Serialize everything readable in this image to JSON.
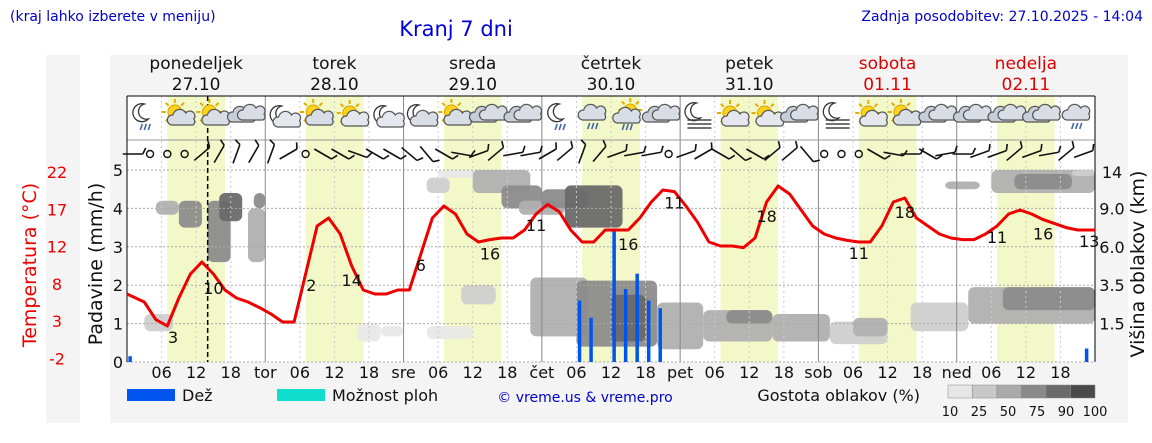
{
  "header": {
    "subtitle_left": "(kraj lahko izberete v meniju)",
    "title": "Kranj 7 dni",
    "updated": "Zadnja posodobitev: 27.10.2025 - 14:04"
  },
  "days": [
    {
      "name": "ponedeljek",
      "date": "27.10",
      "weekend": false
    },
    {
      "name": "torek",
      "date": "28.10",
      "weekend": false
    },
    {
      "name": "sreda",
      "date": "29.10",
      "weekend": false
    },
    {
      "name": "četrtek",
      "date": "30.10",
      "weekend": false
    },
    {
      "name": "petek",
      "date": "31.10",
      "weekend": false
    },
    {
      "name": "sobota",
      "date": "01.11",
      "weekend": true
    },
    {
      "name": "nedelja",
      "date": "02.11",
      "weekend": true
    }
  ],
  "colors": {
    "temperature": "#ee0000",
    "rain": "#0055ee",
    "shower": "#11ddcc",
    "daylight": "#f2f8c8",
    "title": "#0000dd",
    "weekend": "#dd0000"
  },
  "chart_data": {
    "type": "line",
    "x_unit": "hours since 27.10 00:00",
    "xlim": [
      0,
      168
    ],
    "x_ticks": [
      "06",
      "12",
      "18",
      "tor",
      "06",
      "12",
      "18",
      "sre",
      "06",
      "12",
      "18",
      "čet",
      "06",
      "12",
      "18",
      "pet",
      "06",
      "12",
      "18",
      "sob",
      "06",
      "12",
      "18",
      "ned",
      "06",
      "12",
      "18"
    ],
    "axes": {
      "temperature_label": "Temperatura (°C)",
      "temperature_ticks": [
        "22",
        "17",
        "12",
        "8",
        "3",
        "-2"
      ],
      "precip_label": "Padavine (mm/h)",
      "precip_ticks": [
        "5",
        "4",
        "3",
        "2",
        "1",
        "0"
      ],
      "cloud_label": "Višina oblakov (km)",
      "cloud_ticks": [
        "14",
        "9.0",
        "6.0",
        "3.5",
        "1.5"
      ]
    },
    "temperature": {
      "name": "Temperatura",
      "x": [
        0,
        3,
        5,
        7,
        9,
        11,
        13,
        15,
        17,
        19,
        21,
        23,
        25,
        27,
        29,
        31,
        33,
        35,
        37,
        39,
        41,
        43,
        45,
        47,
        49,
        51,
        53,
        55,
        57,
        59,
        61,
        63,
        65,
        67,
        69,
        71,
        73,
        75,
        77,
        79,
        81,
        83,
        85,
        87,
        89,
        91,
        93,
        95,
        97,
        99,
        101,
        103,
        105,
        107,
        109,
        111,
        113,
        115,
        117,
        119,
        121,
        123,
        125,
        127,
        129,
        131,
        133,
        135,
        137,
        139,
        141,
        143,
        145,
        147,
        149,
        151,
        153,
        155,
        157,
        159,
        161,
        163,
        165,
        168
      ],
      "y": [
        6.5,
        5.5,
        3.3,
        2.5,
        6,
        9,
        10.5,
        9,
        7,
        6,
        5.5,
        4.8,
        4,
        3,
        3,
        9,
        15,
        16,
        14,
        10,
        7,
        6.5,
        6.5,
        7,
        7,
        11.5,
        16,
        17.5,
        16.5,
        14,
        13,
        13.3,
        13.5,
        13.5,
        14.5,
        16.5,
        17.7,
        16.8,
        14.5,
        13,
        13,
        14.5,
        14.5,
        14.5,
        16,
        18,
        19.5,
        19.3,
        17.5,
        15.5,
        13,
        12.5,
        12.5,
        12.3,
        13.5,
        18,
        20,
        19,
        17,
        15,
        14,
        13.5,
        13.2,
        13,
        13,
        15,
        18,
        18.5,
        16,
        15,
        14,
        13.5,
        13.3,
        13.3,
        14,
        15,
        16.5,
        17,
        16.5,
        15.8,
        15.3,
        14.8,
        14.5,
        14.5
      ]
    },
    "temperature_labels": [
      {
        "x": 8,
        "value": "3"
      },
      {
        "x": 15,
        "value": "10"
      },
      {
        "x": 32,
        "value": "2"
      },
      {
        "x": 39,
        "value": "14"
      },
      {
        "x": 51,
        "value": "6"
      },
      {
        "x": 63,
        "value": "16"
      },
      {
        "x": 71,
        "value": "11"
      },
      {
        "x": 87,
        "value": "16"
      },
      {
        "x": 95,
        "value": "11"
      },
      {
        "x": 111,
        "value": "18"
      },
      {
        "x": 127,
        "value": "11"
      },
      {
        "x": 135,
        "value": "18"
      },
      {
        "x": 151,
        "value": "11"
      },
      {
        "x": 159,
        "value": "16"
      },
      {
        "x": 167,
        "value": "13"
      }
    ],
    "precipitation": {
      "name": "Dež",
      "x": [
        0.5,
        78.5,
        80.5,
        84.5,
        86.5,
        88.5,
        90.5,
        92.5,
        166.5
      ],
      "y": [
        0.15,
        1.6,
        1.15,
        3.4,
        1.9,
        2.3,
        1.6,
        1.4,
        0.35
      ]
    },
    "now_hour": 14,
    "daylight_hours": [
      7,
      17
    ],
    "clouds": [
      {
        "x0": 3,
        "x1": 8,
        "k0": 1.2,
        "k1": 2.0,
        "d": 25
      },
      {
        "x0": 5,
        "x1": 9,
        "k0": 8.5,
        "k1": 10,
        "d": 50
      },
      {
        "x0": 9,
        "x1": 13,
        "k0": 7.5,
        "k1": 10,
        "d": 75
      },
      {
        "x0": 14,
        "x1": 18,
        "k0": 5,
        "k1": 10,
        "d": 75
      },
      {
        "x0": 16,
        "x1": 20,
        "k0": 8,
        "k1": 11,
        "d": 90
      },
      {
        "x0": 21,
        "x1": 24,
        "k0": 5,
        "k1": 9,
        "d": 50
      },
      {
        "x0": 22,
        "x1": 24,
        "k0": 9,
        "k1": 11,
        "d": 75
      },
      {
        "x0": 40,
        "x1": 44,
        "k0": 0.8,
        "k1": 1.5,
        "d": 10
      },
      {
        "x0": 44,
        "x1": 48,
        "k0": 1.0,
        "k1": 1.4,
        "d": 10
      },
      {
        "x0": 52,
        "x1": 60,
        "k0": 0.9,
        "k1": 1.4,
        "d": 10
      },
      {
        "x0": 52,
        "x1": 56,
        "k0": 11,
        "k1": 13,
        "d": 25
      },
      {
        "x0": 54,
        "x1": 62,
        "k0": 13,
        "k1": 14.5,
        "d": 10
      },
      {
        "x0": 58,
        "x1": 64,
        "k0": 2.5,
        "k1": 3.5,
        "d": 25
      },
      {
        "x0": 60,
        "x1": 70,
        "k0": 11,
        "k1": 14,
        "d": 50
      },
      {
        "x0": 65,
        "x1": 72,
        "k0": 9,
        "k1": 12,
        "d": 75
      },
      {
        "x0": 68,
        "x1": 76,
        "k0": 8.5,
        "k1": 10,
        "d": 50
      },
      {
        "x0": 70,
        "x1": 80,
        "k0": 1.0,
        "k1": 4.0,
        "d": 50
      },
      {
        "x0": 72,
        "x1": 80,
        "k0": 9,
        "k1": 11.5,
        "d": 75
      },
      {
        "x0": 76,
        "x1": 86,
        "k0": 7.5,
        "k1": 12,
        "d": 90
      },
      {
        "x0": 78,
        "x1": 92,
        "k0": 0.6,
        "k1": 3.8,
        "d": 75
      },
      {
        "x0": 84,
        "x1": 90,
        "k0": 0.8,
        "k1": 3.0,
        "d": 90
      },
      {
        "x0": 92,
        "x1": 100,
        "k0": 0.5,
        "k1": 2.6,
        "d": 50
      },
      {
        "x0": 100,
        "x1": 112,
        "k0": 0.8,
        "k1": 2.2,
        "d": 50
      },
      {
        "x0": 104,
        "x1": 112,
        "k0": 1.5,
        "k1": 2.2,
        "d": 75
      },
      {
        "x0": 112,
        "x1": 122,
        "k0": 0.8,
        "k1": 2.0,
        "d": 50
      },
      {
        "x0": 122,
        "x1": 132,
        "k0": 0.7,
        "k1": 1.6,
        "d": 25
      },
      {
        "x0": 126,
        "x1": 132,
        "k0": 1.0,
        "k1": 1.8,
        "d": 50
      },
      {
        "x0": 136,
        "x1": 146,
        "k0": 1.2,
        "k1": 2.6,
        "d": 25
      },
      {
        "x0": 142,
        "x1": 148,
        "k0": 11.5,
        "k1": 12.5,
        "d": 50
      },
      {
        "x0": 146,
        "x1": 168,
        "k0": 1.5,
        "k1": 3.4,
        "d": 50
      },
      {
        "x0": 152,
        "x1": 168,
        "k0": 2.2,
        "k1": 3.4,
        "d": 75
      },
      {
        "x0": 150,
        "x1": 168,
        "k0": 11,
        "k1": 14,
        "d": 50
      },
      {
        "x0": 154,
        "x1": 164,
        "k0": 11.5,
        "k1": 13.5,
        "d": 75
      },
      {
        "x0": 164,
        "x1": 168,
        "k0": 13.2,
        "k1": 14,
        "d": 25
      }
    ],
    "icons": [
      {
        "x": 3,
        "t": "moon-rain"
      },
      {
        "x": 9,
        "t": "sun-cloud"
      },
      {
        "x": 15,
        "t": "sun-cloud"
      },
      {
        "x": 21,
        "t": "cloud"
      },
      {
        "x": 27,
        "t": "moon"
      },
      {
        "x": 33,
        "t": "sun-cloud"
      },
      {
        "x": 39,
        "t": "sun"
      },
      {
        "x": 45,
        "t": "moon"
      },
      {
        "x": 51,
        "t": "moon-cloud"
      },
      {
        "x": 57,
        "t": "sun-cloud"
      },
      {
        "x": 63,
        "t": "cloud"
      },
      {
        "x": 69,
        "t": "cloud"
      },
      {
        "x": 75,
        "t": "moon-rain"
      },
      {
        "x": 81,
        "t": "cloud-rain"
      },
      {
        "x": 87,
        "t": "sun-rain"
      },
      {
        "x": 93,
        "t": "cloud"
      },
      {
        "x": 99,
        "t": "moon-fog"
      },
      {
        "x": 105,
        "t": "sun"
      },
      {
        "x": 111,
        "t": "sun"
      },
      {
        "x": 117,
        "t": "cloud"
      },
      {
        "x": 123,
        "t": "moon-fog"
      },
      {
        "x": 129,
        "t": "sun"
      },
      {
        "x": 135,
        "t": "sun-cloud"
      },
      {
        "x": 141,
        "t": "cloud"
      },
      {
        "x": 147,
        "t": "cloud"
      },
      {
        "x": 153,
        "t": "cloud"
      },
      {
        "x": 159,
        "t": "cloud"
      },
      {
        "x": 165,
        "t": "cloud-rain"
      }
    ],
    "wind": [
      {
        "x": 1,
        "dir": 270,
        "calm": false
      },
      {
        "x": 4,
        "dir": 0,
        "calm": true
      },
      {
        "x": 7,
        "dir": 0,
        "calm": true
      },
      {
        "x": 10,
        "dir": 0,
        "calm": true
      },
      {
        "x": 13,
        "dir": 230,
        "calm": false
      },
      {
        "x": 16,
        "dir": 210,
        "calm": false
      },
      {
        "x": 19,
        "dir": 200,
        "calm": false
      },
      {
        "x": 22,
        "dir": 210,
        "calm": false
      },
      {
        "x": 25,
        "dir": 200,
        "calm": false
      },
      {
        "x": 28,
        "dir": 240,
        "calm": false
      },
      {
        "x": 31,
        "dir": 0,
        "calm": true
      },
      {
        "x": 34,
        "dir": 300,
        "calm": false
      },
      {
        "x": 37,
        "dir": 300,
        "calm": false
      },
      {
        "x": 40,
        "dir": 290,
        "calm": false
      },
      {
        "x": 43,
        "dir": 300,
        "calm": false
      },
      {
        "x": 46,
        "dir": 300,
        "calm": false
      },
      {
        "x": 49,
        "dir": 310,
        "calm": false
      },
      {
        "x": 52,
        "dir": 320,
        "calm": false
      },
      {
        "x": 55,
        "dir": 300,
        "calm": false
      },
      {
        "x": 58,
        "dir": 280,
        "calm": false
      },
      {
        "x": 61,
        "dir": 250,
        "calm": false
      },
      {
        "x": 64,
        "dir": 230,
        "calm": false
      },
      {
        "x": 67,
        "dir": 260,
        "calm": false
      },
      {
        "x": 70,
        "dir": 260,
        "calm": false
      },
      {
        "x": 73,
        "dir": 240,
        "calm": false
      },
      {
        "x": 76,
        "dir": 230,
        "calm": false
      },
      {
        "x": 79,
        "dir": 200,
        "calm": false
      },
      {
        "x": 82,
        "dir": 220,
        "calm": false
      },
      {
        "x": 85,
        "dir": 250,
        "calm": false
      },
      {
        "x": 88,
        "dir": 260,
        "calm": false
      },
      {
        "x": 91,
        "dir": 260,
        "calm": false
      },
      {
        "x": 94,
        "dir": 0,
        "calm": true
      },
      {
        "x": 97,
        "dir": 250,
        "calm": false
      },
      {
        "x": 100,
        "dir": 240,
        "calm": false
      },
      {
        "x": 103,
        "dir": 300,
        "calm": false
      },
      {
        "x": 106,
        "dir": 310,
        "calm": false
      },
      {
        "x": 109,
        "dir": 300,
        "calm": false
      },
      {
        "x": 112,
        "dir": 230,
        "calm": false
      },
      {
        "x": 115,
        "dir": 230,
        "calm": false
      },
      {
        "x": 118,
        "dir": 320,
        "calm": false
      },
      {
        "x": 121,
        "dir": 0,
        "calm": true
      },
      {
        "x": 124,
        "dir": 0,
        "calm": true
      },
      {
        "x": 127,
        "dir": 0,
        "calm": true
      },
      {
        "x": 130,
        "dir": 300,
        "calm": false
      },
      {
        "x": 133,
        "dir": 280,
        "calm": false
      },
      {
        "x": 136,
        "dir": 270,
        "calm": false
      },
      {
        "x": 139,
        "dir": 300,
        "calm": false
      },
      {
        "x": 142,
        "dir": 260,
        "calm": false
      },
      {
        "x": 145,
        "dir": 270,
        "calm": false
      },
      {
        "x": 148,
        "dir": 250,
        "calm": false
      },
      {
        "x": 151,
        "dir": 250,
        "calm": false
      },
      {
        "x": 154,
        "dir": 230,
        "calm": false
      },
      {
        "x": 157,
        "dir": 250,
        "calm": false
      },
      {
        "x": 160,
        "dir": 260,
        "calm": false
      },
      {
        "x": 163,
        "dir": 230,
        "calm": false
      },
      {
        "x": 166,
        "dir": 250,
        "calm": false
      }
    ]
  },
  "legend": {
    "rain_label": "Dež",
    "shower_label": "Možnost ploh",
    "copyright": "© vreme.us & vreme.pro",
    "cloud_density_label": "Gostota oblakov (%)",
    "cloud_density_steps": [
      "10",
      "25",
      "50",
      "75",
      "90",
      "100"
    ],
    "cloud_density_colors": [
      "#e6e6e6",
      "#c8c8c8",
      "#aaaaaa",
      "#8a8a8a",
      "#6a6a6a",
      "#4a4a4a"
    ]
  }
}
